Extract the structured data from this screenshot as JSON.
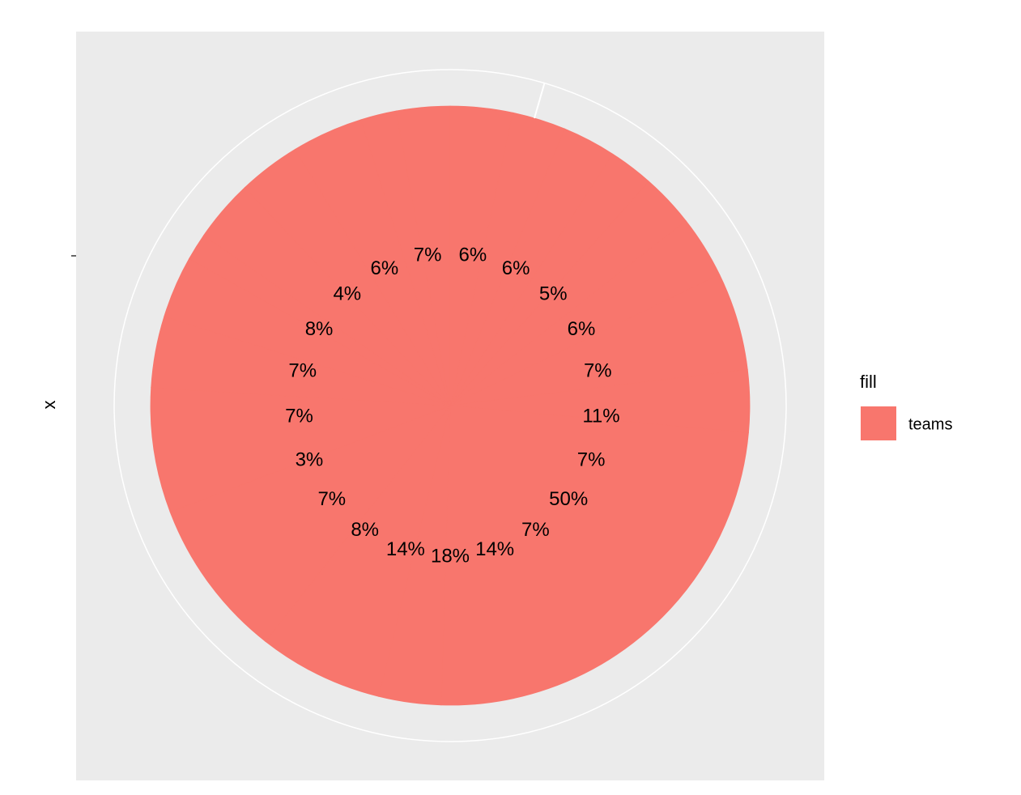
{
  "chart_data": {
    "type": "pie",
    "y_label": "x",
    "legend_title": "fill",
    "series": [
      {
        "name": "teams",
        "color": "#f8766d",
        "values": [
          7,
          6,
          6,
          5,
          6,
          7,
          11,
          7,
          50,
          7,
          14,
          18,
          14,
          8,
          7,
          3,
          7,
          7,
          8,
          4,
          6
        ],
        "value_labels": [
          "7%",
          "6%",
          "6%",
          "5%",
          "6%",
          "7%",
          "11%",
          "7%",
          "50%",
          "7%",
          "14%",
          "18%",
          "14%",
          "8%",
          "7%",
          "3%",
          "7%",
          "7%",
          "8%",
          "4%",
          "6%"
        ]
      }
    ],
    "legend": "right"
  }
}
